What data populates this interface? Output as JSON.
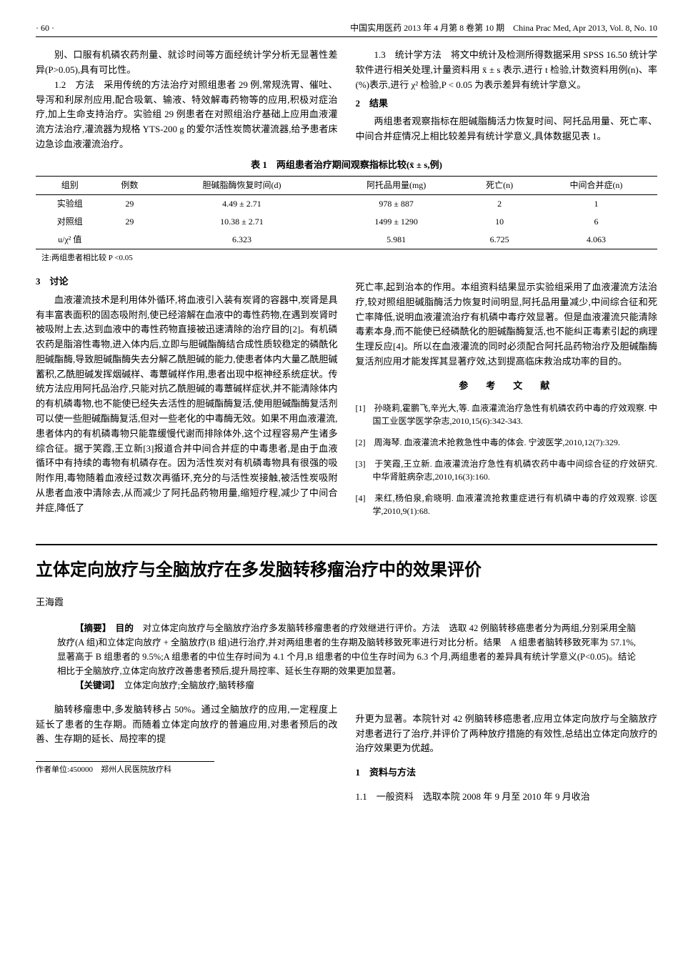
{
  "header": {
    "page_no": "· 60 ·",
    "journal": "中国实用医药 2013 年 4 月第 8 卷第 10 期　China Prac Med, Apr 2013, Vol. 8, No. 10"
  },
  "article1": {
    "top_left_para": "别、口服有机磷农药剂量、就诊时间等方面经统计学分析无显著性差异(P>0.05),具有可比性。",
    "p12": "1.2　方法　采用传统的方法治疗对照组患者 29 例,常规洗胃、催吐、导泻和利尿剂应用,配合吸氧、输液、特效解毒药物等的应用,积极对症治疗,加上生命支持治疗。实验组 29 例患者在对照组治疗基础上应用血液灌流方法治疗,灌流器为规格 YTS-200 g 的爱尔活性炭筒状灌流器,给予患者床边急诊血液灌流治疗。",
    "p13": "1.3　统计学方法　将文中统计及检测所得数据采用 SPSS 16.50 统计学软件进行相关处理,计量资料用 x̄ ± s 表示,进行 t 检验,计数资料用例(n)、率(%)表示,进行 χ² 检验,P < 0.05 为表示差异有统计学意义。",
    "results_head": "2　结果",
    "results_para": "两组患者观察指标在胆碱脂酶活力恢复时间、阿托品用量、死亡率、中间合并症情况上相比较差异有统计学意义,具体数据见表 1。",
    "table1": {
      "caption": "表 1　两组患者治疗期间观察指标比较(x̄ ± s,例)",
      "cols": [
        "组别",
        "例数",
        "胆碱脂酶恢复时间(d)",
        "阿托品用量(mg)",
        "死亡(n)",
        "中间合并症(n)"
      ],
      "rows": [
        [
          "实验组",
          "29",
          "4.49 ± 2.71",
          "978 ± 887",
          "2",
          "1"
        ],
        [
          "对照组",
          "29",
          "10.38 ± 2.71",
          "1499 ± 1290",
          "10",
          "6"
        ],
        [
          "u/χ² 值",
          "",
          "6.323",
          "5.981",
          "6.725",
          "4.063"
        ]
      ],
      "note": "注:两组患者相比较 P <0.05"
    },
    "discuss_head": "3　讨论",
    "discuss_left": "血液灌流技术是利用体外循环,将血液引入装有炭肾的容器中,炭肾是具有丰富表面积的固态吸附剂,使已经溶解在血液中的毒性药物,在遇到炭肾时被吸附上去,达到血液中的毒性药物直接被迅速清除的治疗目的[2]。有机磷农药是脂溶性毒物,进入体内后,立即与胆碱酯酶结合成性质较稳定的磷酰化胆碱酯酶,导致胆碱酯酶失去分解乙酰胆碱的能力,使患者体内大量乙酰胆碱蓄积,乙酰胆碱发挥烟碱样、毒蕈碱样作用,患者出现中枢神经系统症状。传统方法应用阿托品治疗,只能对抗乙酰胆碱的毒蕈碱样症状,并不能清除体内的有机磷毒物,也不能使已经失去活性的胆碱酯酶复活,使用胆碱酯酶复活剂可以使一些胆碱酯酶复活,但对一些老化的中毒酶无效。如果不用血液灌流,患者体内的有机磷毒物只能靠缓慢代谢而排除体外,这个过程容易产生诸多综合征。据于笑霞,王立新[3]报道合并中间合并症的中毒患者,是由于血液循环中有持续的毒物有机磷存在。因为活性炭对有机磷毒物具有很强的吸附作用,毒物随着血液经过数次再循环,充分的与活性炭接触,被活性炭吸附从患者血液中清除去,从而减少了阿托品药物用量,缩短疗程,减少了中间合并症,降低了",
    "discuss_right": "死亡率,起到治本的作用。本组资料结果显示实验组采用了血液灌流方法治疗,较对照组胆碱脂酶活力恢复时间明显,阿托品用量减少,中间综合征和死亡率降低,说明血液灌流治疗有机磷中毒疗效显著。但是血液灌流只能清除毒素本身,而不能使已经磷酰化的胆碱酯酶复活,也不能纠正毒素引起的病理生理反应[4]。所以在血液灌流的同时必须配合阿托品药物治疗及胆碱酯酶复活剂应用才能发挥其显著疗效,达到提高临床救治成功率的目的。",
    "refs_head": "参　考　文　献",
    "refs": [
      "[1]　孙晓莉,霍鹏飞,辛光大,等. 血液灌流治疗急性有机磷农药中毒的疗效观察. 中国工业医学医学杂志,2010,15(6):342-343.",
      "[2]　周海琴. 血液灌流术抢救急性中毒的体会. 宁波医学,2010,12(7):329.",
      "[3]　于笑霞,王立新. 血液灌流治疗急性有机磷农药中毒中间综合征的疗效研究. 中华肾脏病杂志,2010,16(3):160.",
      "[4]　来红,杨伯泉,俞晓明. 血液灌流抢救重症进行有机磷中毒的疗效观察. 诊医学,2010,9(1):68."
    ]
  },
  "article2": {
    "title": "立体定向放疗与全脑放疗在多发脑转移瘤治疗中的效果评价",
    "author": "王海霞",
    "abs_label": "【摘要】　目的",
    "abstract": "　对立体定向放疗与全脑放疗治疗多发脑转移瘤患者的疗效继进行评价。方法　选取 42 例脑转移癌患者分为两组,分别采用全脑放疗(A 组)和立体定向放疗 + 全脑放疗(B 组)进行治疗,并对两组患者的生存期及脑转移致死率进行对比分析。结果　A 组患者脑转移致死率为 57.1%,显著高于 B 组患者的 9.5%;A 组患者的中位生存时间为 4.1 个月,B 组患者的中位生存时间为 6.3 个月,两组患者的差异具有统计学意义(P<0.05)。结论　相比于全脑放疗,立体定向放疗改善患者预后,提升局控率、延长生存期的效果更加显著。",
    "kw_label": "【关键词】　",
    "keywords": "立体定向放疗;全脑放疗;脑转移瘤",
    "body_left": "脑转移瘤患中,多发脑转移占 50%。通过全脑放疗的应用,一定程度上延长了患者的生存期。而随着立体定向放疗的普遍应用,对患者预后的改善、生存期的延长、局控率的提",
    "body_right": "升更为显著。本院针对 42 例脑转移癌患者,应用立体定向放疗与全脑放疗对患者进行了治疗,并评价了两种放疗措施的有效性,总结出立体定向放疗的治疗效果更为优越。",
    "sec1_head": "1　资料与方法",
    "sec11": "1.1　一般资料　选取本院 2008 年 9 月至 2010 年 9 月收治",
    "affil": "作者单位:450000　郑州人民医院放疗科"
  }
}
